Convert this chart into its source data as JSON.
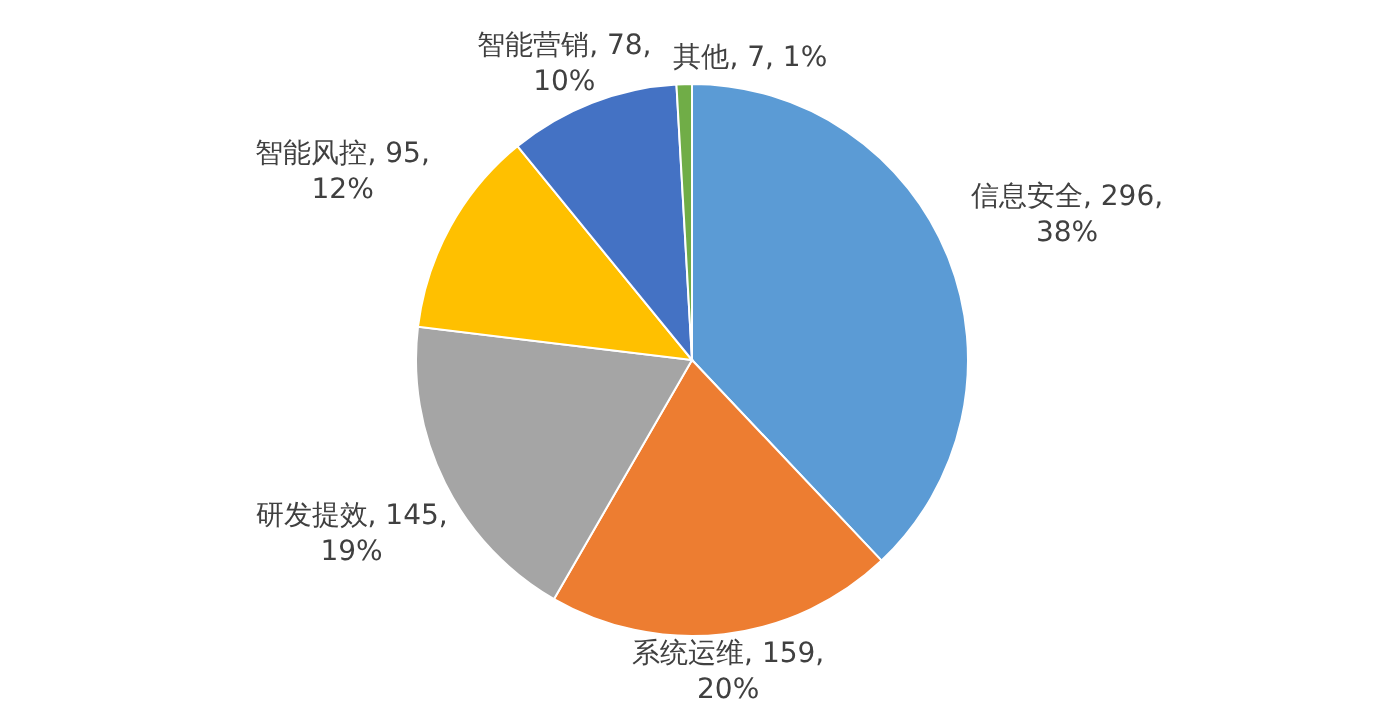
{
  "chart_data": {
    "type": "pie",
    "categories": [
      "信息安全",
      "系统运维",
      "研发提效",
      "智能风控",
      "智能营销",
      "其他"
    ],
    "values": [
      296,
      159,
      145,
      95,
      78,
      7
    ],
    "colors": [
      "#5b9bd5",
      "#ed7d31",
      "#a5a5a5",
      "#ffc000",
      "#4472c4",
      "#70ad47"
    ],
    "value_labels": [
      "296, 38%",
      "159, 20%",
      "145, 19%",
      "95, 12%",
      "78, 10%",
      "7, 1%"
    ]
  }
}
